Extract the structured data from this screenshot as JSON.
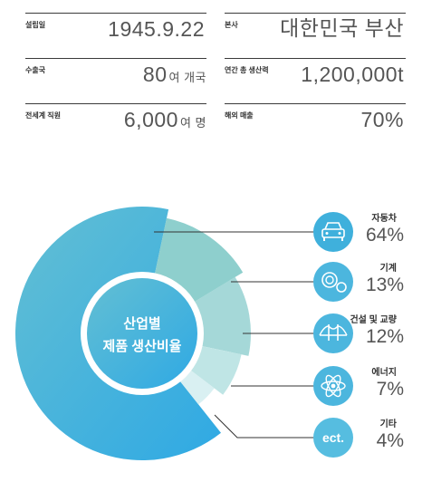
{
  "facts": [
    {
      "label": "설립일",
      "value": "1945.9.22",
      "unit": ""
    },
    {
      "label": "본사",
      "value": "대한민국 부산",
      "unit": ""
    },
    {
      "label": "수출국",
      "value": "80",
      "unit": "여 개국"
    },
    {
      "label": "연간 총 생산력",
      "value": "1,200,000t",
      "unit": ""
    },
    {
      "label": "전세계 직원",
      "value": "6,000",
      "unit": "여 명"
    },
    {
      "label": "해외 매출",
      "value": "70%",
      "unit": ""
    }
  ],
  "chart_data": {
    "type": "pie",
    "title": "산업별\n제품 생산비율",
    "title_line1": "산업별",
    "title_line2": "제품 생산비율",
    "categories": [
      "자동차",
      "기계",
      "건설 및 교량",
      "에너지",
      "기타"
    ],
    "values": [
      64,
      13,
      12,
      7,
      4
    ],
    "labels": [
      "64%",
      "13%",
      "12%",
      "7%",
      "4%"
    ],
    "colors": [
      "#4fb3d6",
      "#8ecfcd",
      "#a5d8d8",
      "#bfe5e5",
      "#d9f0f2"
    ],
    "icons": [
      "car-icon",
      "gears-icon",
      "bridge-icon",
      "atom-icon",
      "etc-icon"
    ],
    "etc_icon_text": "ect."
  }
}
